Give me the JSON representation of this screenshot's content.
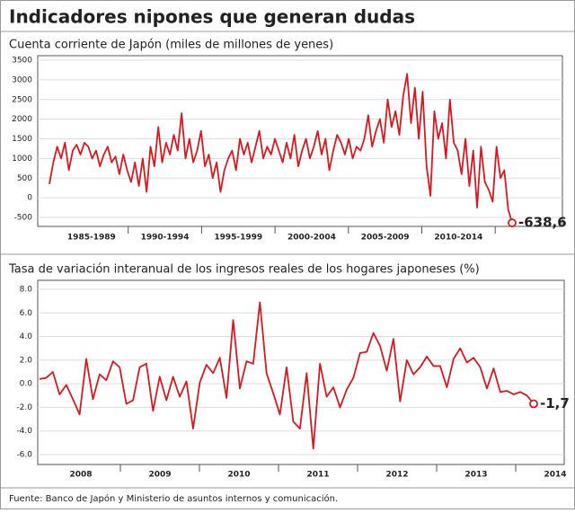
{
  "title": "Indicadores nipones que generan dudas",
  "source": "Fuente: Banco de Japón y Ministerio de asuntos internos y comunicación.",
  "chart_data": [
    {
      "type": "line",
      "subtitle": "Cuenta corriente de Japón (miles de millones de yenes)",
      "x_labels": [
        "1985-1989",
        "1990-1994",
        "1995-1999",
        "2000-2004",
        "2005-2009",
        "2010-2014"
      ],
      "color": "#d7191f",
      "ylim": [
        -500,
        3500
      ],
      "yticks": [
        -500,
        0,
        500,
        1000,
        1500,
        2000,
        2500,
        3000,
        3500
      ],
      "grid": true,
      "values": [
        350,
        900,
        1300,
        1000,
        1400,
        700,
        1200,
        1350,
        1100,
        1400,
        1300,
        1000,
        1200,
        800,
        1100,
        1300,
        900,
        1050,
        600,
        1100,
        700,
        400,
        900,
        300,
        1000,
        150,
        1300,
        800,
        1800,
        900,
        1400,
        1100,
        1600,
        1200,
        2150,
        1000,
        1500,
        900,
        1200,
        1700,
        800,
        1100,
        500,
        900,
        150,
        700,
        1000,
        1200,
        700,
        1500,
        1100,
        1400,
        900,
        1300,
        1700,
        1000,
        1300,
        1100,
        1500,
        1200,
        900,
        1400,
        1000,
        1600,
        800,
        1200,
        1500,
        1000,
        1300,
        1700,
        1100,
        1500,
        700,
        1200,
        1600,
        1400,
        1100,
        1500,
        1000,
        1300,
        1200,
        1500,
        2100,
        1300,
        1700,
        2000,
        1400,
        2500,
        1800,
        2200,
        1600,
        2600,
        3150,
        1900,
        2800,
        1500,
        2700,
        800,
        50,
        2200,
        1500,
        1900,
        1000,
        2500,
        1400,
        1200,
        600,
        1500,
        300,
        1200,
        -250,
        1300,
        400,
        200,
        -100,
        1300,
        500,
        700,
        -300,
        -638.6
      ],
      "value_labels": {
        "119": "-638,6"
      }
    },
    {
      "type": "line",
      "subtitle": "Tasa de variación interanual de los ingresos reales de los hogares japoneses (%)",
      "x_labels": [
        "2008",
        "2009",
        "2010",
        "2011",
        "2012",
        "2013",
        "2014"
      ],
      "color": "#d7191f",
      "ylim": [
        -6,
        8
      ],
      "yticks": [
        {
          "value": -6,
          "label": "-6.0"
        },
        {
          "value": -4,
          "label": "-4.0"
        },
        {
          "value": -2,
          "label": "-2.0"
        },
        {
          "value": 0,
          "label": "0.0"
        },
        {
          "value": 2,
          "label": "2.0"
        },
        {
          "value": 4,
          "label": "4.0"
        },
        {
          "value": 6,
          "label": "6.0"
        },
        {
          "value": 8,
          "label": "8.0"
        }
      ],
      "grid": true,
      "values": [
        0.4,
        0.5,
        1.0,
        -0.9,
        -0.1,
        -1.3,
        -2.6,
        2.1,
        -1.3,
        0.8,
        0.3,
        1.9,
        1.4,
        -1.7,
        -1.4,
        1.4,
        1.7,
        -2.3,
        0.6,
        -1.4,
        0.6,
        -1.1,
        0.2,
        -3.8,
        0.1,
        1.6,
        0.9,
        2.2,
        -1.2,
        5.4,
        -0.4,
        1.9,
        1.7,
        6.9,
        0.9,
        -0.8,
        -2.6,
        1.4,
        -3.2,
        -3.8,
        0.9,
        -5.5,
        1.7,
        -1.1,
        -0.3,
        -2.0,
        -0.5,
        0.5,
        2.6,
        2.7,
        4.3,
        3.2,
        1.1,
        3.8,
        -1.5,
        2.0,
        0.8,
        1.4,
        2.3,
        1.5,
        1.5,
        -0.3,
        2.1,
        3.0,
        1.8,
        2.2,
        1.4,
        -0.4,
        1.3,
        -0.7,
        -0.6,
        -0.9,
        -0.7,
        -1.0,
        -1.7
      ],
      "value_labels": {
        "74": "-1,7"
      }
    }
  ]
}
